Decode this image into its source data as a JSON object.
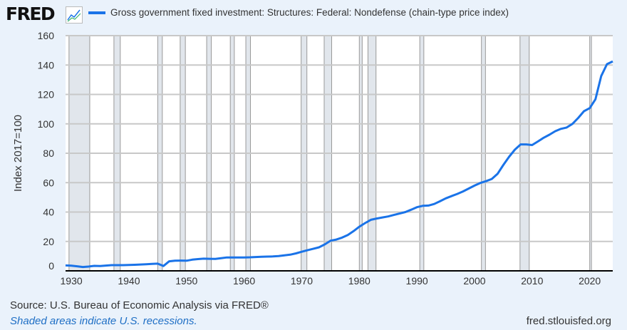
{
  "header": {
    "logo": "FRED",
    "logo_icon": "chart-line-icon"
  },
  "footer": {
    "source": "Source: U.S. Bureau of Economic Analysis via FRED®",
    "note": "Shaded areas indicate U.S. recessions.",
    "url": "fred.stlouisfed.org"
  },
  "colors": {
    "line": "#1a73e8",
    "recession": "#e1e6ec",
    "grid": "#c8c8c8",
    "background": "#eaf2fb"
  },
  "chart_data": {
    "type": "line",
    "title": "Gross government fixed investment: Structures: Federal: Nondefense (chain-type price index)",
    "xlabel": "",
    "ylabel": "Index 2017=100",
    "xlim": [
      1929,
      2024
    ],
    "ylim": [
      0,
      160
    ],
    "yticks": [
      0,
      20,
      40,
      60,
      80,
      100,
      120,
      140,
      160
    ],
    "xticks": [
      1930,
      1940,
      1950,
      1960,
      1970,
      1980,
      1990,
      2000,
      2010,
      2020
    ],
    "grid": true,
    "legend_position": "top",
    "series": [
      {
        "name": "Gross government fixed investment: Structures: Federal: Nondefense (chain-type price index)",
        "x": [
          1929,
          1930,
          1931,
          1932,
          1933,
          1934,
          1935,
          1936,
          1937,
          1938,
          1939,
          1940,
          1941,
          1942,
          1943,
          1944,
          1945,
          1946,
          1947,
          1948,
          1949,
          1950,
          1951,
          1952,
          1953,
          1954,
          1955,
          1956,
          1957,
          1958,
          1959,
          1960,
          1961,
          1962,
          1963,
          1964,
          1965,
          1966,
          1967,
          1968,
          1969,
          1970,
          1971,
          1972,
          1973,
          1974,
          1975,
          1976,
          1977,
          1978,
          1979,
          1980,
          1981,
          1982,
          1983,
          1984,
          1985,
          1986,
          1987,
          1988,
          1989,
          1990,
          1991,
          1992,
          1993,
          1994,
          1995,
          1996,
          1997,
          1998,
          1999,
          2000,
          2001,
          2002,
          2003,
          2004,
          2005,
          2006,
          2007,
          2008,
          2009,
          2010,
          2011,
          2012,
          2013,
          2014,
          2015,
          2016,
          2017,
          2018,
          2019,
          2020,
          2021,
          2022,
          2023,
          2024
        ],
        "y": [
          3.7,
          3.5,
          3.1,
          2.6,
          2.9,
          3.4,
          3.3,
          3.6,
          3.9,
          3.9,
          3.9,
          4.0,
          4.1,
          4.3,
          4.5,
          4.7,
          4.9,
          3.3,
          6.5,
          6.9,
          7.0,
          6.9,
          7.6,
          8.0,
          8.3,
          8.2,
          8.1,
          8.6,
          9.1,
          9.1,
          9.1,
          9.1,
          9.2,
          9.4,
          9.6,
          9.7,
          9.8,
          10.1,
          10.5,
          11.0,
          11.9,
          13.0,
          14.0,
          15.0,
          16.0,
          18.0,
          20.5,
          21.3,
          22.6,
          24.4,
          27.0,
          30.0,
          32.5,
          34.7,
          35.6,
          36.3,
          37.0,
          38.0,
          39.0,
          40.0,
          41.6,
          43.3,
          44.2,
          44.4,
          45.5,
          47.3,
          49.3,
          50.8,
          52.3,
          54.0,
          56.0,
          58.0,
          59.8,
          61.0,
          62.5,
          66.0,
          72.0,
          77.6,
          82.4,
          86.0,
          86.0,
          85.6,
          88.0,
          90.5,
          92.6,
          95.0,
          96.6,
          97.5,
          100.0,
          104.0,
          108.6,
          110.7,
          116.7,
          132.5,
          140.6,
          142.5
        ]
      }
    ],
    "recessions": [
      [
        1929.6,
        1933.2
      ],
      [
        1937.4,
        1938.5
      ],
      [
        1945.0,
        1945.8
      ],
      [
        1948.9,
        1949.8
      ],
      [
        1953.5,
        1954.3
      ],
      [
        1957.6,
        1958.3
      ],
      [
        1960.3,
        1961.1
      ],
      [
        1969.9,
        1970.9
      ],
      [
        1973.9,
        1975.2
      ],
      [
        1980.0,
        1980.5
      ],
      [
        1981.5,
        1982.9
      ],
      [
        1990.5,
        1991.2
      ],
      [
        2001.2,
        2001.9
      ],
      [
        2007.9,
        2009.5
      ],
      [
        2020.0,
        2020.3
      ]
    ]
  }
}
